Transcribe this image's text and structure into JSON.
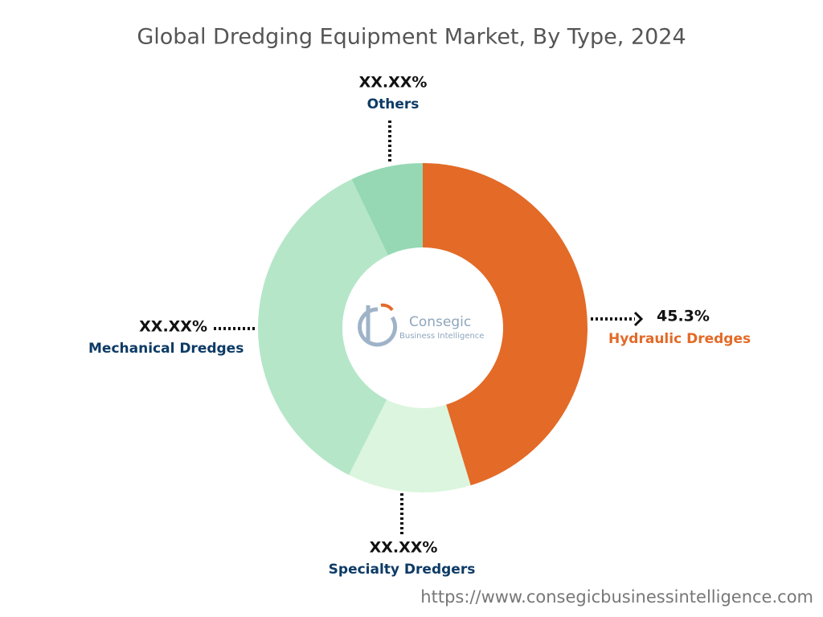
{
  "chart_data": {
    "type": "pie",
    "title": "Global Dredging Equipment Market, By Type, 2024",
    "categories": [
      "Hydraulic Dredges",
      "Specialty Dredgers",
      "Mechanical Dredges",
      "Others"
    ],
    "values": [
      45.3,
      12.1,
      35.5,
      7.1
    ],
    "value_labels": [
      "45.3%",
      "XX.XX%",
      "XX.XX%",
      "XX.XX%"
    ],
    "colors": [
      "#e36a27",
      "#dcf5de",
      "#b5e6c8",
      "#96d8b4"
    ]
  },
  "logo": {
    "name": "Consegic",
    "tagline": "Business Intelligence"
  },
  "source_url": "https://www.consegicbusinessintelligence.com"
}
